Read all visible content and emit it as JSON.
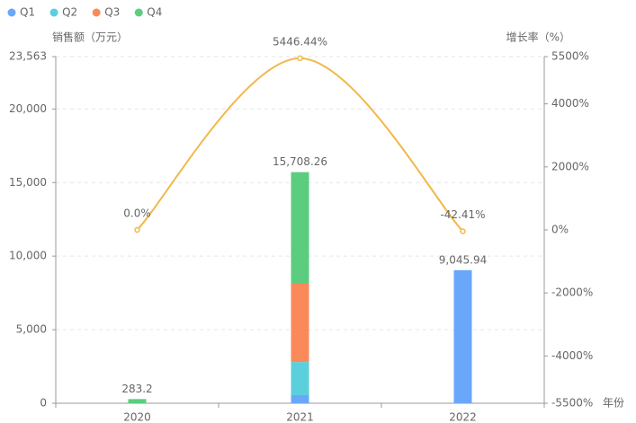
{
  "chart_data": {
    "type": "bar",
    "stacked": true,
    "y_label": "销售额（万元）",
    "y2_label": "增长率（%）",
    "x_label": "年份",
    "categories": [
      "2020",
      "2021",
      "2022"
    ],
    "series": [
      {
        "name": "Q1",
        "color": "#6aa7fa",
        "values": [
          0,
          550,
          9045.94
        ]
      },
      {
        "name": "Q2",
        "color": "#5bd0dc",
        "values": [
          0,
          2250,
          0
        ]
      },
      {
        "name": "Q3",
        "color": "#fa8a5a",
        "values": [
          0,
          5320,
          0
        ]
      },
      {
        "name": "Q4",
        "color": "#5ccd7e",
        "values": [
          283.2,
          7588.26,
          0
        ]
      }
    ],
    "totals": {
      "values": [
        283.2,
        15708.26,
        9045.94
      ],
      "value_labels": [
        "283.2",
        "15,708.26",
        "9,045.94"
      ]
    },
    "line": {
      "type": "line",
      "smooth": true,
      "axis": "y2",
      "color": "#f2b84b",
      "values": [
        0,
        5446.44,
        -42.41
      ],
      "value_labels": [
        "0.0%",
        "5446.44%",
        "-42.41%"
      ]
    },
    "ylim": [
      0,
      23563
    ],
    "yticks": [
      0,
      {
        "value": 5000,
        "label": "5,000"
      },
      {
        "value": 10000,
        "label": "10,000"
      },
      {
        "value": 15000,
        "label": "15,000"
      },
      {
        "value": 20000,
        "label": "20,000"
      },
      {
        "value": 23563,
        "label": "23,563"
      }
    ],
    "y2lim": [
      -5500,
      5500
    ],
    "y2ticks": [
      {
        "value": -5500,
        "label": "-5500%"
      },
      {
        "value": -4000,
        "label": "-4000%"
      },
      {
        "value": -2000,
        "label": "-2000%"
      },
      {
        "value": 0,
        "label": "0%"
      },
      {
        "value": 2000,
        "label": "2000%"
      },
      {
        "value": 4000,
        "label": "4000%"
      },
      {
        "value": 5500,
        "label": "5500%"
      }
    ],
    "grid": true,
    "legend": "top-left"
  }
}
